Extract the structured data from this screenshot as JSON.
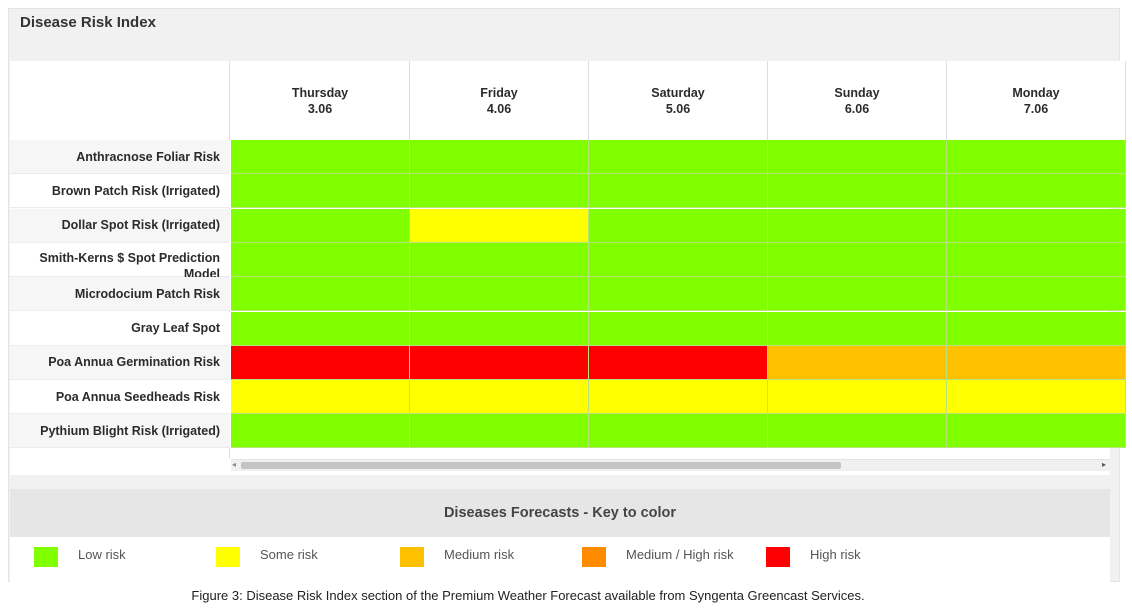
{
  "panel": {
    "title": "Disease Risk Index"
  },
  "days": [
    {
      "name": "Thursday",
      "date": "3.06"
    },
    {
      "name": "Friday",
      "date": "4.06"
    },
    {
      "name": "Saturday",
      "date": "5.06"
    },
    {
      "name": "Sunday",
      "date": "6.06"
    },
    {
      "name": "Monday",
      "date": "7.06"
    }
  ],
  "risk_colors": {
    "low": "#7fff00",
    "some": "#ffff00",
    "medium": "#ffc000",
    "medium_high": "#ff8c00",
    "high": "#ff0000"
  },
  "rows": [
    {
      "label": "Anthracnose Foliar Risk",
      "levels": [
        "low",
        "low",
        "low",
        "low",
        "low"
      ]
    },
    {
      "label": "Brown Patch Risk (Irrigated)",
      "levels": [
        "low",
        "low",
        "low",
        "low",
        "low"
      ]
    },
    {
      "label": "Dollar Spot Risk (Irrigated)",
      "levels": [
        "low",
        "some",
        "low",
        "low",
        "low"
      ]
    },
    {
      "label": "Smith-Kerns $ Spot Prediction Model",
      "levels": [
        "low",
        "low",
        "low",
        "low",
        "low"
      ]
    },
    {
      "label": "Microdocium Patch Risk",
      "levels": [
        "low",
        "low",
        "low",
        "low",
        "low"
      ]
    },
    {
      "label": "Gray Leaf Spot",
      "levels": [
        "low",
        "low",
        "low",
        "low",
        "low"
      ]
    },
    {
      "label": "Poa Annua Germination Risk",
      "levels": [
        "high",
        "high",
        "high",
        "medium",
        "medium"
      ]
    },
    {
      "label": "Poa Annua Seedheads Risk",
      "levels": [
        "some",
        "some",
        "some",
        "some",
        "some"
      ]
    },
    {
      "label": "Pythium Blight Risk (Irrigated)",
      "levels": [
        "low",
        "low",
        "low",
        "low",
        "low"
      ]
    }
  ],
  "key": {
    "title": "Diseases Forecasts - Key to color",
    "items": [
      {
        "level": "low",
        "label": "Low risk"
      },
      {
        "level": "some",
        "label": "Some risk"
      },
      {
        "level": "medium",
        "label": "Medium risk"
      },
      {
        "level": "medium_high",
        "label": "Medium / High risk"
      },
      {
        "level": "high",
        "label": "High risk"
      }
    ]
  },
  "scrollbar": {
    "left_arrow": "◂",
    "right_arrow": "▸"
  },
  "caption": "Figure 3: Disease Risk Index section of the Premium Weather Forecast available from Syngenta Greencast Services."
}
